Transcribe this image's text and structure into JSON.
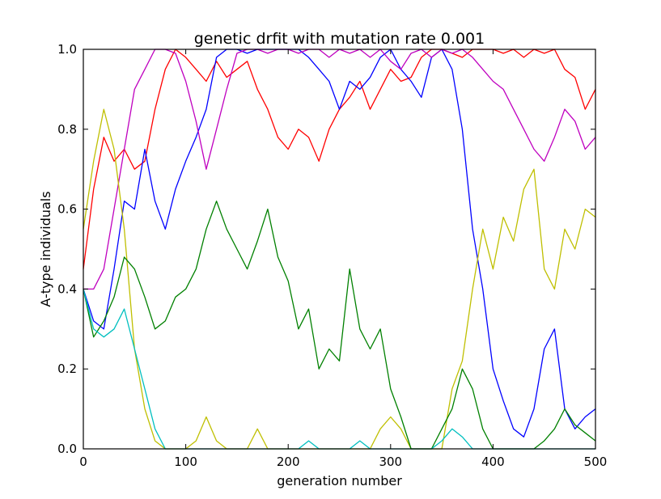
{
  "chart_data": {
    "type": "line",
    "title": "genetic drfit with mutation rate 0.001",
    "xlabel": "generation number",
    "ylabel": "A-type individuals",
    "xlim": [
      0,
      500
    ],
    "ylim": [
      0.0,
      1.0
    ],
    "x_ticks": [
      "0",
      "100",
      "200",
      "300",
      "400",
      "500"
    ],
    "y_ticks": [
      "0.0",
      "0.2",
      "0.4",
      "0.6",
      "0.8",
      "1.0"
    ],
    "grid": false,
    "legend": "none",
    "x": [
      0,
      10,
      20,
      30,
      40,
      50,
      60,
      70,
      80,
      90,
      100,
      110,
      120,
      130,
      140,
      150,
      160,
      170,
      180,
      190,
      200,
      210,
      220,
      230,
      240,
      250,
      260,
      270,
      280,
      290,
      300,
      310,
      320,
      330,
      340,
      350,
      360,
      370,
      380,
      390,
      400,
      410,
      420,
      430,
      440,
      450,
      460,
      470,
      480,
      490,
      500
    ],
    "series": [
      {
        "color": "#ff0000",
        "values": [
          0.45,
          0.65,
          0.78,
          0.72,
          0.75,
          0.7,
          0.72,
          0.85,
          0.95,
          1.0,
          0.98,
          0.95,
          0.92,
          0.97,
          0.93,
          0.95,
          0.97,
          0.9,
          0.85,
          0.78,
          0.75,
          0.8,
          0.78,
          0.72,
          0.8,
          0.85,
          0.88,
          0.92,
          0.85,
          0.9,
          0.95,
          0.92,
          0.93,
          0.98,
          1.0,
          1.0,
          0.99,
          0.98,
          1.0,
          1.0,
          1.0,
          0.99,
          1.0,
          0.98,
          1.0,
          0.99,
          1.0,
          0.95,
          0.93,
          0.85,
          0.9
        ]
      },
      {
        "color": "#0000ff",
        "values": [
          0.4,
          0.32,
          0.3,
          0.45,
          0.62,
          0.6,
          0.75,
          0.62,
          0.55,
          0.65,
          0.72,
          0.78,
          0.85,
          0.98,
          1.0,
          1.0,
          0.99,
          1.0,
          1.0,
          1.0,
          1.0,
          1.0,
          0.98,
          0.95,
          0.92,
          0.85,
          0.92,
          0.9,
          0.93,
          0.98,
          1.0,
          0.95,
          0.92,
          0.88,
          0.98,
          1.0,
          0.95,
          0.8,
          0.55,
          0.4,
          0.2,
          0.12,
          0.05,
          0.03,
          0.1,
          0.25,
          0.3,
          0.1,
          0.05,
          0.08,
          0.1
        ]
      },
      {
        "color": "#bf00bf",
        "values": [
          0.4,
          0.4,
          0.45,
          0.6,
          0.75,
          0.9,
          0.95,
          1.0,
          1.0,
          0.99,
          0.92,
          0.82,
          0.7,
          0.8,
          0.9,
          0.99,
          1.0,
          1.0,
          0.99,
          1.0,
          1.0,
          0.99,
          1.0,
          1.0,
          0.98,
          1.0,
          0.99,
          1.0,
          0.98,
          1.0,
          0.97,
          0.95,
          0.99,
          1.0,
          0.98,
          1.0,
          0.99,
          1.0,
          0.98,
          0.95,
          0.92,
          0.9,
          0.85,
          0.8,
          0.75,
          0.72,
          0.78,
          0.85,
          0.82,
          0.75,
          0.78
        ]
      },
      {
        "color": "#bfbf00",
        "values": [
          0.55,
          0.72,
          0.85,
          0.75,
          0.55,
          0.25,
          0.1,
          0.02,
          0.0,
          0.0,
          0.0,
          0.02,
          0.08,
          0.02,
          0.0,
          0.0,
          0.0,
          0.05,
          0.0,
          0.0,
          0.0,
          0.0,
          0.0,
          0.0,
          0.0,
          0.0,
          0.0,
          0.0,
          0.0,
          0.05,
          0.08,
          0.05,
          0.0,
          0.0,
          0.0,
          0.0,
          0.15,
          0.22,
          0.4,
          0.55,
          0.45,
          0.58,
          0.52,
          0.65,
          0.7,
          0.45,
          0.4,
          0.55,
          0.5,
          0.6,
          0.58
        ]
      },
      {
        "color": "#008000",
        "values": [
          0.4,
          0.28,
          0.32,
          0.38,
          0.48,
          0.45,
          0.38,
          0.3,
          0.32,
          0.38,
          0.4,
          0.45,
          0.55,
          0.62,
          0.55,
          0.5,
          0.45,
          0.52,
          0.6,
          0.48,
          0.42,
          0.3,
          0.35,
          0.2,
          0.25,
          0.22,
          0.45,
          0.3,
          0.25,
          0.3,
          0.15,
          0.08,
          0.0,
          0.0,
          0.0,
          0.05,
          0.1,
          0.2,
          0.15,
          0.05,
          0.0,
          0.0,
          0.0,
          0.0,
          0.0,
          0.02,
          0.05,
          0.1,
          0.06,
          0.04,
          0.02
        ]
      },
      {
        "color": "#00bfbf",
        "values": [
          0.4,
          0.3,
          0.28,
          0.3,
          0.35,
          0.25,
          0.15,
          0.05,
          0.0,
          0.0,
          0.0,
          0.0,
          0.0,
          0.0,
          0.0,
          0.0,
          0.0,
          0.0,
          0.0,
          0.0,
          0.0,
          0.0,
          0.02,
          0.0,
          0.0,
          0.0,
          0.0,
          0.02,
          0.0,
          0.0,
          0.0,
          0.0,
          0.0,
          0.0,
          0.0,
          0.02,
          0.05,
          0.03,
          0.0,
          0.0,
          0.0,
          0.0,
          0.0,
          0.0,
          0.0,
          0.0,
          0.0,
          0.0,
          0.0,
          0.0,
          0.0
        ]
      }
    ]
  }
}
